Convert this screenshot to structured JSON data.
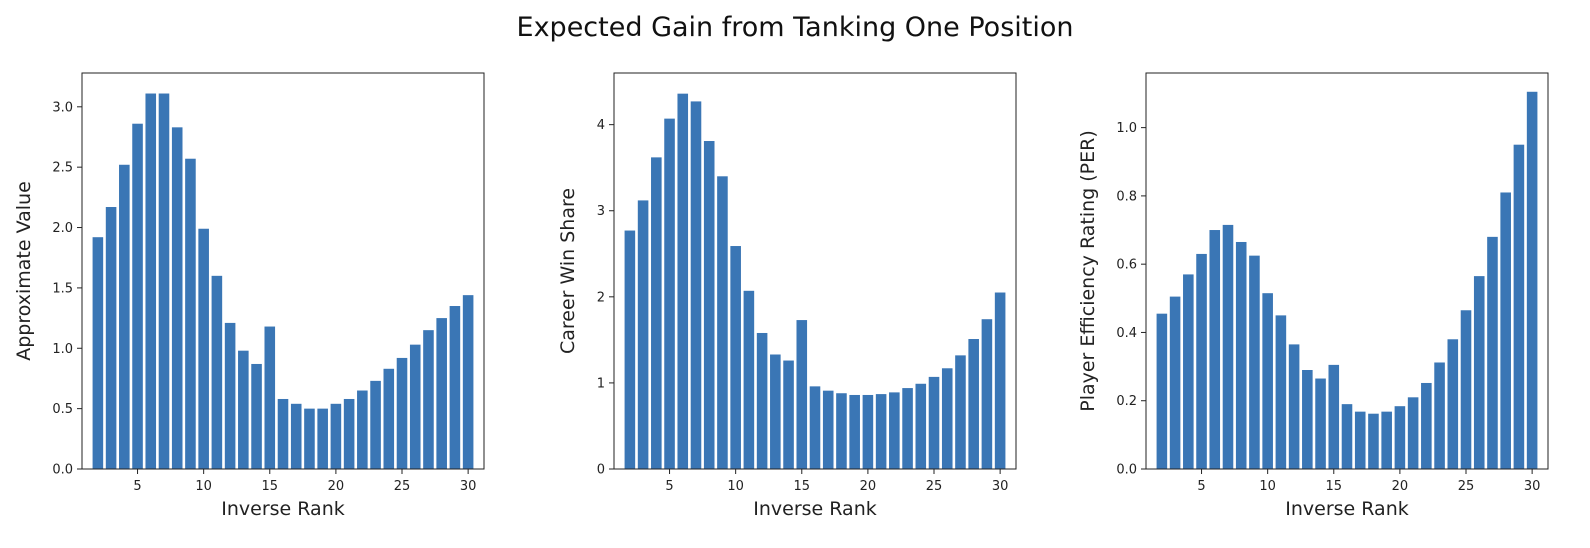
{
  "title": "Expected Gain from Tanking One Position",
  "colors": {
    "bar": "#3a76b5",
    "axis": "#222222"
  },
  "chart_data": [
    {
      "type": "bar",
      "xlabel": "Inverse Rank",
      "ylabel": "Approximate Value",
      "x": [
        2,
        3,
        4,
        5,
        6,
        7,
        8,
        9,
        10,
        11,
        12,
        13,
        14,
        15,
        16,
        17,
        18,
        19,
        20,
        21,
        22,
        23,
        24,
        25,
        26,
        27,
        28,
        29,
        30
      ],
      "values": [
        1.92,
        2.17,
        2.52,
        2.86,
        3.11,
        3.11,
        2.83,
        2.57,
        1.99,
        1.6,
        1.21,
        0.98,
        0.87,
        1.18,
        0.58,
        0.54,
        0.5,
        0.5,
        0.54,
        0.58,
        0.65,
        0.73,
        0.83,
        0.92,
        1.03,
        1.15,
        1.25,
        1.35,
        1.44
      ],
      "xlim": [
        0.8,
        31.2
      ],
      "ylim": [
        0,
        3.28
      ],
      "xticks": [
        5,
        10,
        15,
        20,
        25,
        30
      ],
      "yticks": [
        0.0,
        0.5,
        1.0,
        1.5,
        2.0,
        2.5,
        3.0
      ],
      "ytick_labels": [
        "0.0",
        "0.5",
        "1.0",
        "1.5",
        "2.0",
        "2.5",
        "3.0"
      ]
    },
    {
      "type": "bar",
      "xlabel": "Inverse Rank",
      "ylabel": "Career Win Share",
      "x": [
        2,
        3,
        4,
        5,
        6,
        7,
        8,
        9,
        10,
        11,
        12,
        13,
        14,
        15,
        16,
        17,
        18,
        19,
        20,
        21,
        22,
        23,
        24,
        25,
        26,
        27,
        28,
        29,
        30
      ],
      "values": [
        2.77,
        3.12,
        3.62,
        4.07,
        4.36,
        4.27,
        3.81,
        3.4,
        2.59,
        2.07,
        1.58,
        1.33,
        1.26,
        1.73,
        0.96,
        0.91,
        0.88,
        0.86,
        0.86,
        0.87,
        0.89,
        0.94,
        0.99,
        1.07,
        1.17,
        1.32,
        1.51,
        1.74,
        2.05
      ],
      "xlim": [
        0.8,
        31.2
      ],
      "ylim": [
        0,
        4.6
      ],
      "xticks": [
        5,
        10,
        15,
        20,
        25,
        30
      ],
      "yticks": [
        0,
        1,
        2,
        3,
        4
      ],
      "ytick_labels": [
        "0",
        "1",
        "2",
        "3",
        "4"
      ]
    },
    {
      "type": "bar",
      "xlabel": "Inverse Rank",
      "ylabel": "Player Efficiency Rating (PER)",
      "x": [
        2,
        3,
        4,
        5,
        6,
        7,
        8,
        9,
        10,
        11,
        12,
        13,
        14,
        15,
        16,
        17,
        18,
        19,
        20,
        21,
        22,
        23,
        24,
        25,
        26,
        27,
        28,
        29,
        30
      ],
      "values": [
        0.455,
        0.505,
        0.57,
        0.63,
        0.7,
        0.715,
        0.665,
        0.625,
        0.515,
        0.45,
        0.365,
        0.29,
        0.265,
        0.305,
        0.19,
        0.168,
        0.162,
        0.168,
        0.184,
        0.21,
        0.252,
        0.312,
        0.38,
        0.465,
        0.565,
        0.68,
        0.81,
        0.95,
        1.105
      ],
      "xlim": [
        0.8,
        31.2
      ],
      "ylim": [
        0,
        1.16
      ],
      "xticks": [
        5,
        10,
        15,
        20,
        25,
        30
      ],
      "yticks": [
        0.0,
        0.2,
        0.4,
        0.6,
        0.8,
        1.0
      ],
      "ytick_labels": [
        "0.0",
        "0.2",
        "0.4",
        "0.6",
        "0.8",
        "1.0"
      ]
    }
  ]
}
